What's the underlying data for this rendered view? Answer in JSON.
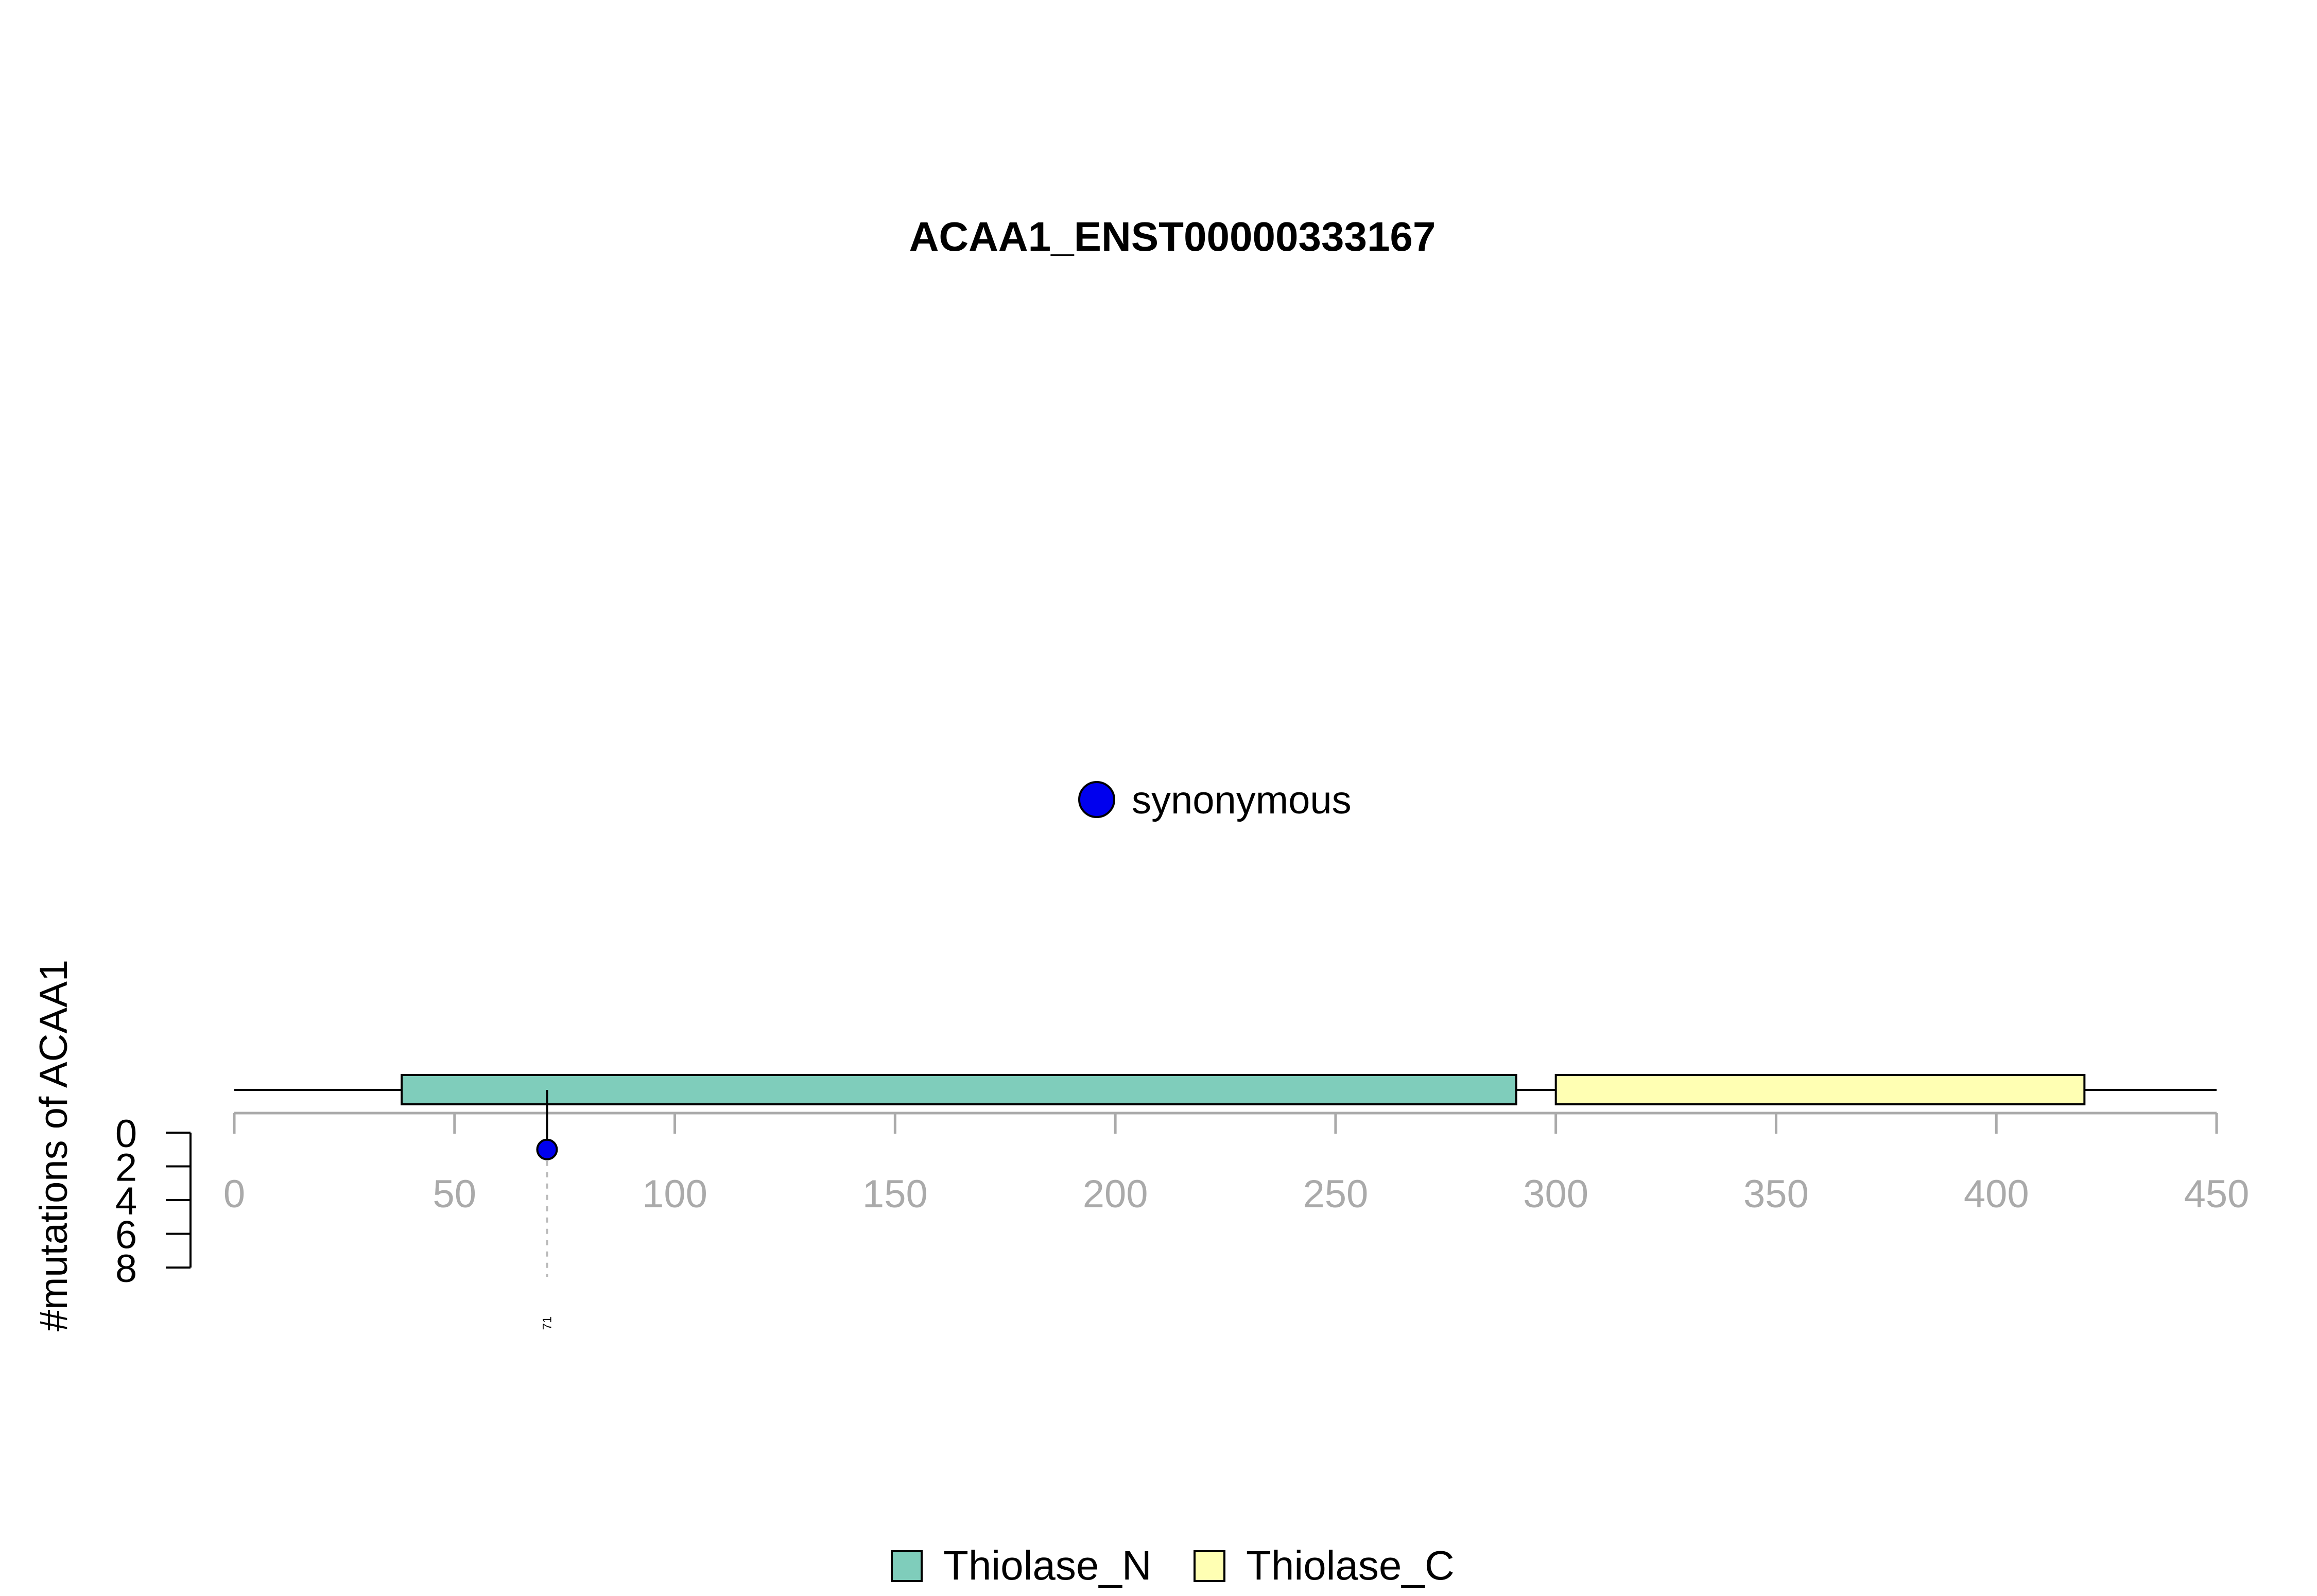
{
  "chart_data": {
    "type": "lollipop",
    "title": "ACAA1_ENST00000333167",
    "ylabel": "#mutations of ACAA1",
    "xlim": [
      0,
      450
    ],
    "x_ticks": [
      "0",
      "50",
      "100",
      "150",
      "200",
      "250",
      "300",
      "350",
      "400",
      "450"
    ],
    "ylim": [
      0,
      8
    ],
    "y_ticks": [
      "0",
      "2",
      "4",
      "6",
      "8"
    ],
    "protein_length": 450,
    "domains": [
      {
        "name": "Thiolase_N",
        "start": 38,
        "end": 291,
        "color": "#7fcdbb"
      },
      {
        "name": "Thiolase_C",
        "start": 300,
        "end": 420,
        "color": "#ffffb3"
      }
    ],
    "mutations": [
      {
        "position": 71,
        "count": 1,
        "type": "synonymous",
        "label": "71",
        "color": "#0000ee"
      }
    ],
    "mutation_legend": [
      {
        "label": "synonymous",
        "color": "#0000ee"
      }
    ],
    "domain_legend": [
      {
        "label": "Thiolase_N",
        "color": "#7fcdbb"
      },
      {
        "label": "Thiolase_C",
        "color": "#ffffb3"
      }
    ]
  }
}
